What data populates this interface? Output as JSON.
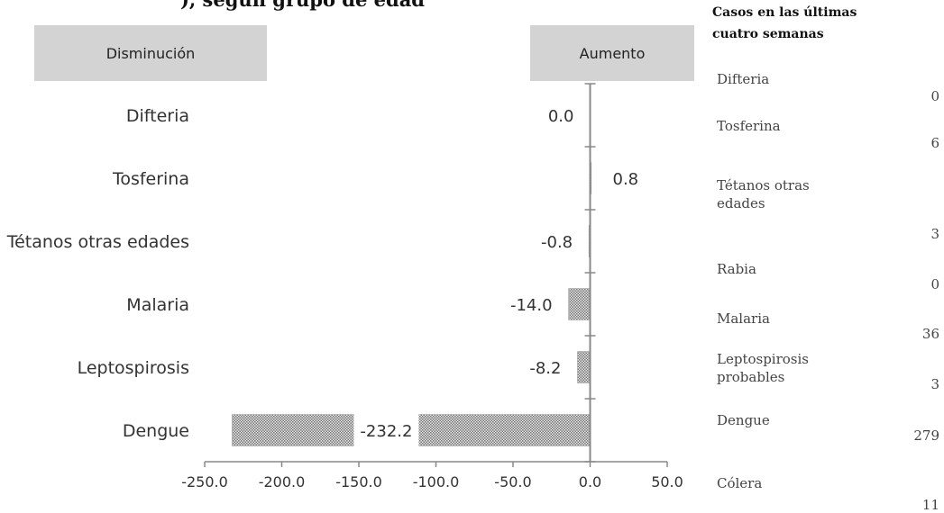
{
  "title_fragment": "), según grupo de edad",
  "legend": {
    "decrease": "Disminución",
    "increase": "Aumento"
  },
  "chart_data": {
    "type": "bar",
    "orientation": "horizontal",
    "categories": [
      "Difteria",
      "Tosferina",
      "Tétanos otras edades",
      "Malaria",
      "Leptospirosis",
      "Dengue"
    ],
    "values": [
      0.0,
      0.8,
      -0.8,
      -14.0,
      -8.2,
      -232.2
    ],
    "data_labels": [
      "0.0",
      "0.8",
      "-0.8",
      "-14.0",
      "-8.2",
      "-232.2"
    ],
    "xlim": [
      -250,
      50
    ],
    "xticks": [
      "-250.0",
      "-200.0",
      "-150.0",
      "-100.0",
      "-50.0",
      "0.0",
      "50.0"
    ],
    "bar_color": "#8c8c8c",
    "grid": false
  },
  "table": {
    "header": "Casos en las últimas cuatro semanas",
    "rows": [
      {
        "name": "Difteria",
        "value": "0"
      },
      {
        "name": "Tosferina",
        "value": "6"
      },
      {
        "name": "Tétanos otras edades",
        "value": "3"
      },
      {
        "name": "Rabia",
        "value": "0"
      },
      {
        "name": "Malaria",
        "value": "36"
      },
      {
        "name": "Leptospirosis probables",
        "value": "3"
      },
      {
        "name": "Dengue",
        "value": "279"
      },
      {
        "name": "Cólera",
        "value": "11"
      }
    ]
  }
}
